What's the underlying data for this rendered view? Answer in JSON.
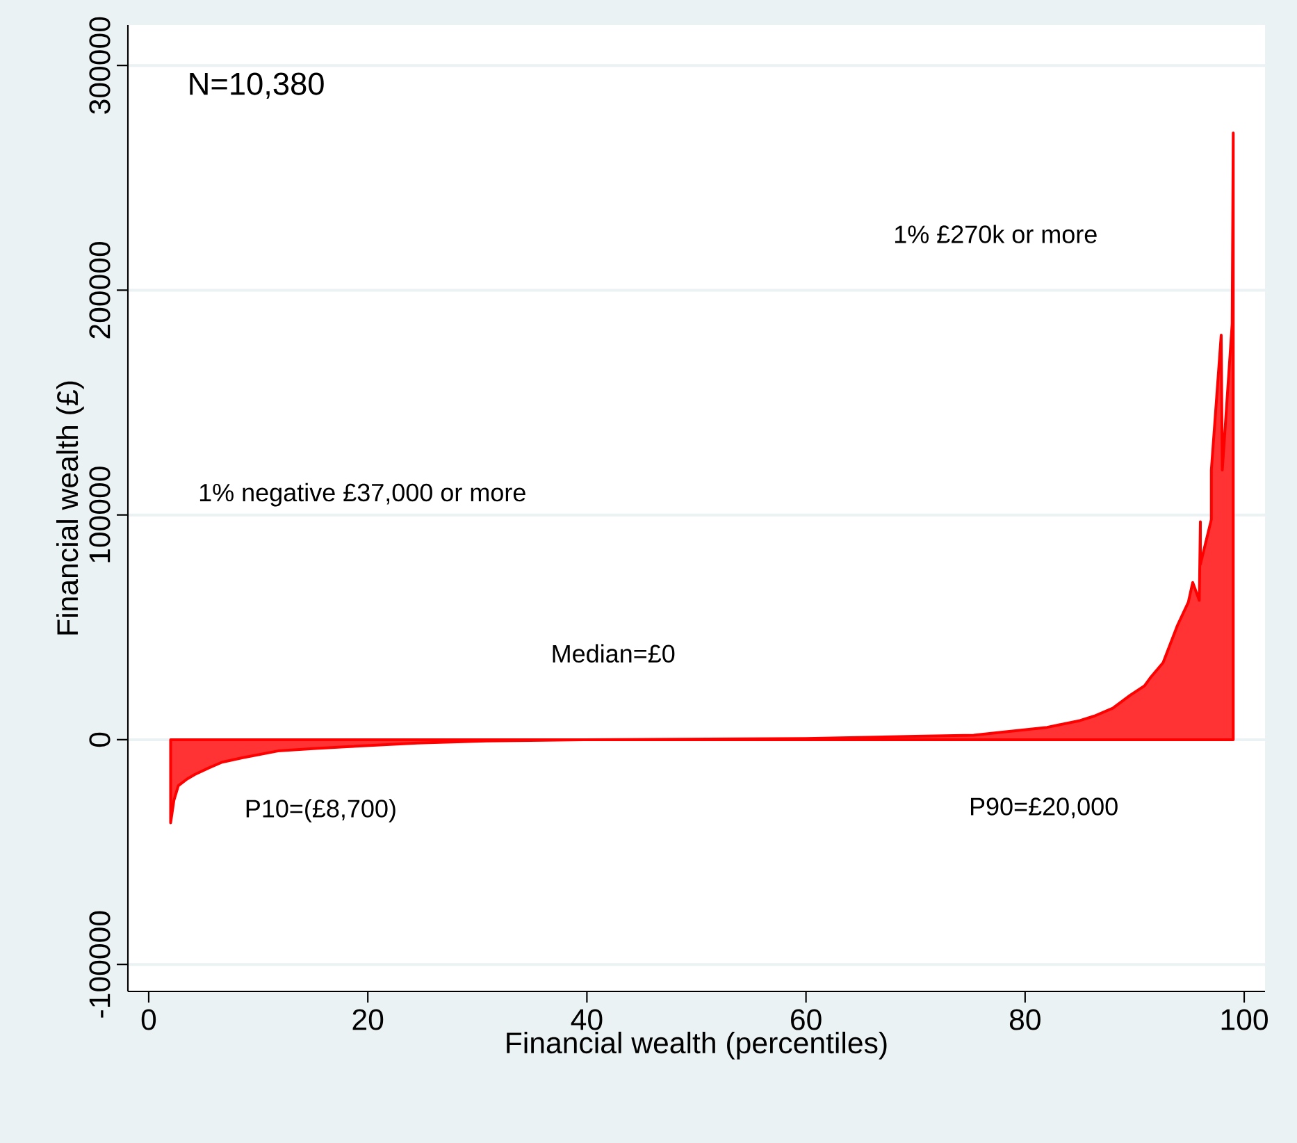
{
  "chart_data": {
    "type": "area",
    "xlabel": "Financial wealth (percentiles)",
    "ylabel": "Financial wealth (£)",
    "annotations": [
      "N=10,380",
      "1% £270k or more",
      "1% negative £37,000 or more",
      "Median=£0",
      "P10=(£8,700)",
      "P90=£20,000"
    ],
    "series": [
      {
        "color": "#ff0000",
        "x": [
          2.0,
          2.0,
          2.3,
          2.7,
          3.5,
          4.2,
          5.5,
          6.7,
          8.6,
          11.8,
          15,
          18.1,
          24.5,
          30.8,
          39.7,
          60,
          70,
          75.3,
          77.8,
          82,
          85.0,
          86.3,
          88,
          89.6,
          90.9,
          91.5,
          92.6,
          93.9,
          94.9,
          95.3,
          95.9,
          96.0,
          96.0,
          97.0,
          97.0,
          97.9,
          98.0,
          98.9,
          99.0,
          99.0
        ],
        "values": [
          0,
          -37000,
          -27000,
          -20500,
          -17500,
          -15500,
          -12500,
          -10000,
          -8000,
          -5000,
          -4000,
          -3100,
          -1500,
          -600,
          0,
          500,
          1500,
          2000,
          3300,
          5500,
          8500,
          10500,
          14000,
          19800,
          24000,
          28000,
          34300,
          50800,
          61200,
          70000,
          62000,
          97000,
          78000,
          98000,
          120000,
          180000,
          120000,
          185000,
          270000,
          0
        ]
      }
    ],
    "xlim": [
      -1.9,
      101.9
    ],
    "ylim": [
      -112000,
      318000
    ],
    "xticks": [
      0,
      20,
      40,
      60,
      80,
      100
    ],
    "yticks": [
      -100000,
      0,
      100000,
      200000,
      300000
    ],
    "grid": "y"
  }
}
